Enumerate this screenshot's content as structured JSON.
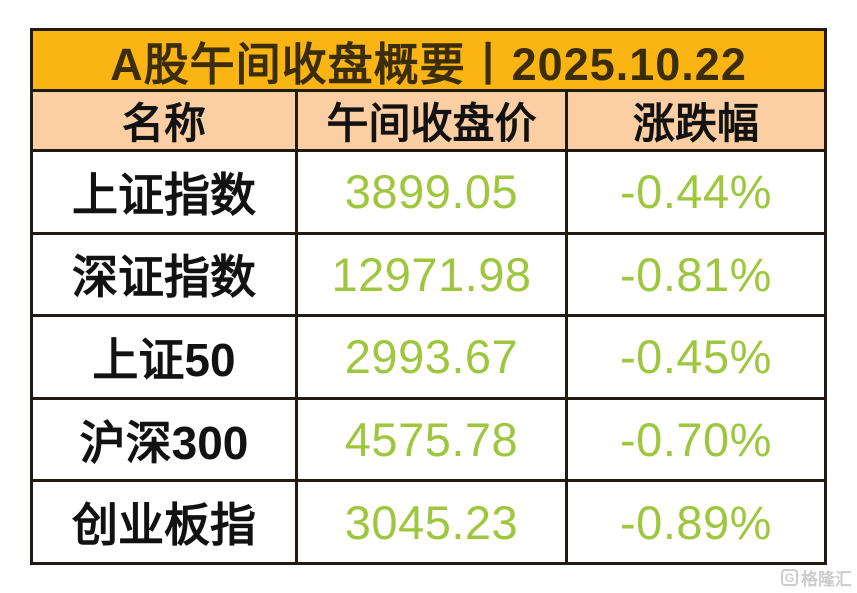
{
  "title": "A股午间收盘概要丨2025.10.22",
  "table": {
    "headers": [
      "名称",
      "午间收盘价",
      "涨跌幅"
    ],
    "rows": [
      {
        "name": "上证指数",
        "price": "3899.05",
        "change": "-0.44%"
      },
      {
        "name": "深证指数",
        "price": "12971.98",
        "change": "-0.81%"
      },
      {
        "name": "上证50",
        "price": "2993.67",
        "change": "-0.45%"
      },
      {
        "name": "沪深300",
        "price": "4575.78",
        "change": "-0.70%"
      },
      {
        "name": "创业板指",
        "price": "3045.23",
        "change": "-0.89%"
      }
    ]
  },
  "watermark": {
    "logo_letter": "G",
    "label": "格隆汇"
  },
  "colors": {
    "title_bg": "#fbb513",
    "header_bg": "#fbcfa3",
    "border": "#211a11",
    "number_green": "#9fc73e",
    "title_text": "#3b2d06",
    "body_text": "#121212",
    "watermark_gray": "#cdcdcd"
  },
  "chart_data": {
    "type": "table",
    "title": "A股午间收盘概要丨2025.10.22",
    "columns": [
      "名称",
      "午间收盘价",
      "涨跌幅"
    ],
    "rows": [
      [
        "上证指数",
        3899.05,
        "-0.44%"
      ],
      [
        "深证指数",
        12971.98,
        "-0.81%"
      ],
      [
        "上证50",
        2993.67,
        "-0.45%"
      ],
      [
        "沪深300",
        4575.78,
        "-0.70%"
      ],
      [
        "创业板指",
        3045.23,
        "-0.89%"
      ]
    ]
  }
}
